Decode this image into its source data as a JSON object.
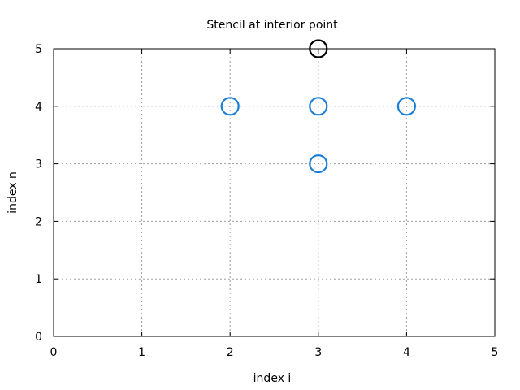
{
  "chart_data": {
    "type": "scatter",
    "title": "Stencil at interior point",
    "xlabel": "index i",
    "ylabel": "index n",
    "xlim": [
      0,
      5
    ],
    "ylim": [
      0,
      5
    ],
    "xticks": [
      "0",
      "1",
      "2",
      "3",
      "4",
      "5"
    ],
    "yticks": [
      "0",
      "1",
      "2",
      "3",
      "4",
      "5"
    ],
    "grid": true,
    "series": [
      {
        "color": "#1a7fd6",
        "marker": "open-circle",
        "points": [
          {
            "x": 2,
            "y": 4
          },
          {
            "x": 3,
            "y": 4
          },
          {
            "x": 4,
            "y": 4
          },
          {
            "x": 3,
            "y": 3
          }
        ]
      },
      {
        "color": "#000000",
        "marker": "open-circle",
        "points": [
          {
            "x": 3,
            "y": 5
          }
        ]
      }
    ]
  }
}
